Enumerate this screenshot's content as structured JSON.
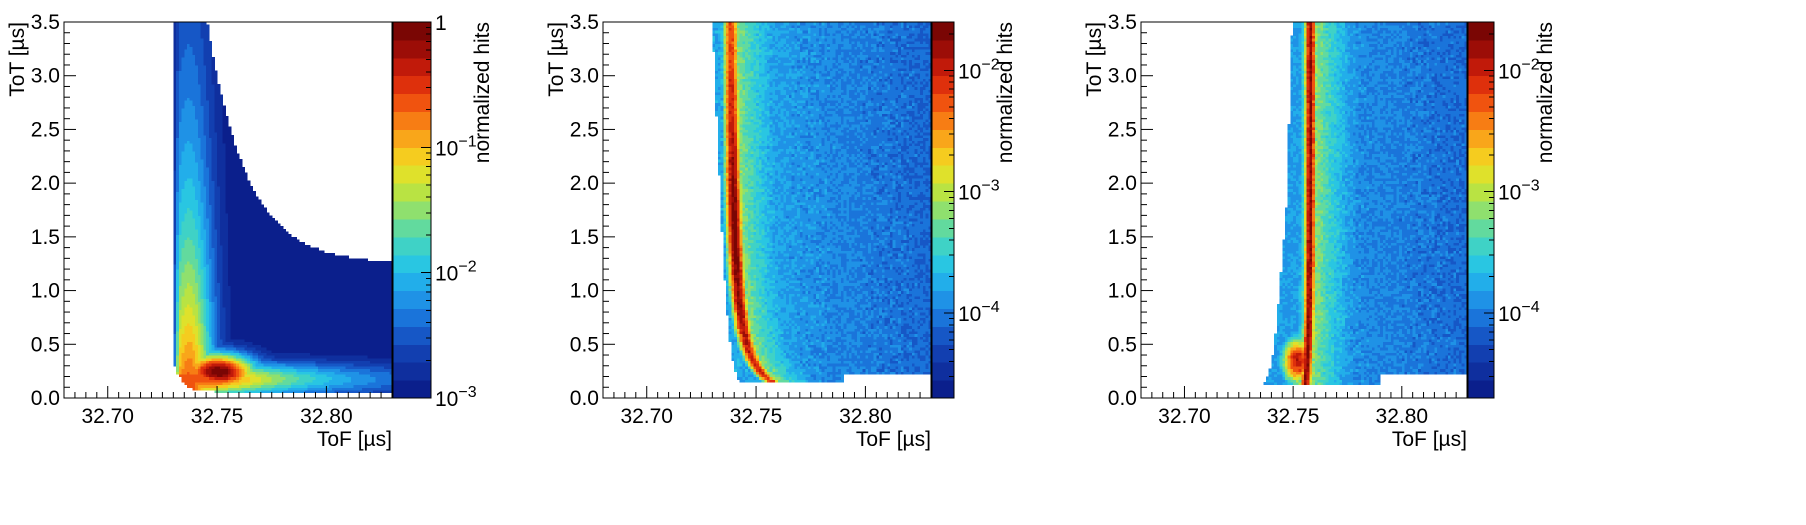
{
  "chart_data": [
    {
      "type": "heatmap",
      "title": "",
      "xlabel": "ToF [µs]",
      "ylabel": "ToT [µs]",
      "zlabel": "normalized hits",
      "xlim": [
        32.68,
        32.83
      ],
      "ylim": [
        0.0,
        3.5
      ],
      "x_ticks": [
        "32.70",
        "32.75",
        "32.80"
      ],
      "y_ticks": [
        "0.0",
        "0.5",
        "1.0",
        "1.5",
        "2.0",
        "2.5",
        "3.0",
        "3.5"
      ],
      "z_scale": "log",
      "zlim": [
        0.001,
        1
      ],
      "z_ticks": [
        {
          "base": "10",
          "exp": "−3"
        },
        {
          "base": "10",
          "exp": "−2"
        },
        {
          "base": "10",
          "exp": "−1"
        },
        {
          "base": "1",
          "exp": ""
        }
      ],
      "peak": {
        "tof": 32.755,
        "tot": 0.25
      }
    },
    {
      "type": "heatmap",
      "title": "",
      "xlabel": "ToF [µs]",
      "ylabel": "ToT [µs]",
      "zlabel": "normalized hits",
      "xlim": [
        32.68,
        32.83
      ],
      "ylim": [
        0.0,
        3.5
      ],
      "x_ticks": [
        "32.70",
        "32.75",
        "32.80"
      ],
      "y_ticks": [
        "0.0",
        "0.5",
        "1.0",
        "1.5",
        "2.0",
        "2.5",
        "3.0",
        "3.5"
      ],
      "z_scale": "log",
      "zlim": [
        2e-05,
        0.025
      ],
      "z_ticks": [
        {
          "base": "10",
          "exp": "−4"
        },
        {
          "base": "10",
          "exp": "−3"
        },
        {
          "base": "10",
          "exp": "−2"
        }
      ],
      "peak": {
        "tof": 32.745,
        "tot": 1.5
      }
    },
    {
      "type": "heatmap",
      "title": "",
      "xlabel": "ToF [µs]",
      "ylabel": "ToT [µs]",
      "zlabel": "normalized hits",
      "xlim": [
        32.68,
        32.83
      ],
      "ylim": [
        0.0,
        3.5
      ],
      "x_ticks": [
        "32.70",
        "32.75",
        "32.80"
      ],
      "y_ticks": [
        "0.0",
        "0.5",
        "1.0",
        "1.5",
        "2.0",
        "2.5",
        "3.0",
        "3.5"
      ],
      "z_scale": "log",
      "zlim": [
        2e-05,
        0.025
      ],
      "z_ticks": [
        {
          "base": "10",
          "exp": "−4"
        },
        {
          "base": "10",
          "exp": "−3"
        },
        {
          "base": "10",
          "exp": "−2"
        }
      ],
      "peak": {
        "tof": 32.758,
        "tot": 1.5
      }
    }
  ]
}
